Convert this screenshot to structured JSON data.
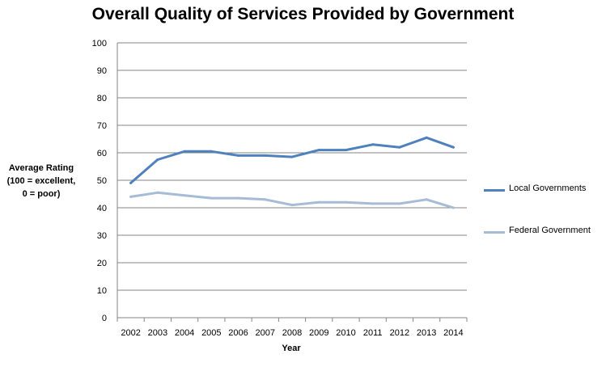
{
  "chart_data": {
    "type": "line",
    "title": "Overall Quality of Services Provided by Government",
    "xlabel": "Year",
    "ylabel_lines": [
      "Average Rating",
      "(100 = excellent,",
      "0 = poor)"
    ],
    "categories": [
      "2002",
      "2003",
      "2004",
      "2005",
      "2006",
      "2007",
      "2008",
      "2009",
      "2010",
      "2011",
      "2012",
      "2013",
      "2014"
    ],
    "ylim": [
      0,
      100
    ],
    "yticks": [
      0,
      10,
      20,
      30,
      40,
      50,
      60,
      70,
      80,
      90,
      100
    ],
    "grid": true,
    "legend_position": "right",
    "series": [
      {
        "name": "Local Governments",
        "color": "#4f81bd",
        "values": [
          49,
          57.5,
          60.5,
          60.5,
          59,
          59,
          58.5,
          61,
          61,
          63,
          62,
          65.5,
          62
        ]
      },
      {
        "name": "Federal Government",
        "color": "#a6bbd6",
        "values": [
          44,
          45.5,
          44.5,
          43.5,
          43.5,
          43,
          41,
          42,
          42,
          41.5,
          41.5,
          43,
          40
        ]
      }
    ]
  }
}
